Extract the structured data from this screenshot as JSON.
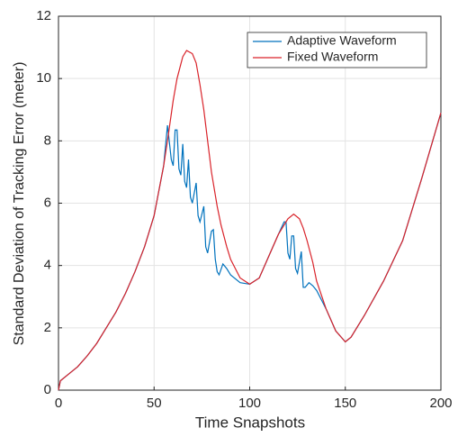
{
  "chart_data": {
    "type": "line",
    "xlabel": "Time Snapshots",
    "ylabel": "Standard Deviation of Tracking Error (meter)",
    "xlim": [
      0,
      200
    ],
    "xticks": [
      0,
      50,
      100,
      150,
      200
    ],
    "ylim": [
      0,
      12
    ],
    "yticks": [
      0,
      2,
      4,
      6,
      8,
      10,
      12
    ],
    "grid": true,
    "legend": "top-right",
    "series": [
      {
        "name": "Adaptive Waveform",
        "color": "#0072bd",
        "x": [
          0,
          1,
          5,
          10,
          15,
          20,
          25,
          30,
          35,
          40,
          45,
          50,
          55,
          57,
          59,
          60,
          61,
          62,
          63,
          64,
          65,
          66,
          67,
          68,
          69,
          70,
          72,
          73,
          74,
          76,
          77,
          78,
          80,
          81,
          82,
          83,
          84,
          86,
          88,
          90,
          95,
          100,
          105,
          110,
          115,
          118,
          119,
          120,
          121,
          122,
          123,
          124,
          125,
          127,
          128,
          129,
          131,
          133,
          135,
          140,
          145,
          150,
          153,
          160,
          170,
          180,
          190,
          200
        ],
        "values": [
          0,
          0.3,
          0.5,
          0.75,
          1.1,
          1.5,
          2.0,
          2.5,
          3.1,
          3.8,
          4.6,
          5.6,
          7.2,
          8.5,
          7.4,
          7.2,
          8.35,
          8.35,
          7.1,
          6.9,
          7.9,
          6.7,
          6.5,
          7.4,
          6.2,
          6.0,
          6.65,
          5.6,
          5.4,
          5.9,
          4.6,
          4.4,
          5.1,
          5.15,
          4.2,
          3.8,
          3.7,
          4.05,
          3.9,
          3.7,
          3.45,
          3.4,
          3.6,
          4.3,
          5.0,
          5.4,
          5.4,
          4.4,
          4.2,
          4.95,
          4.95,
          3.9,
          3.75,
          4.45,
          3.3,
          3.3,
          3.45,
          3.35,
          3.2,
          2.6,
          1.9,
          1.55,
          1.7,
          2.4,
          3.5,
          4.8,
          6.8,
          8.9
        ]
      },
      {
        "name": "Fixed Waveform",
        "color": "#d9232a",
        "x": [
          0,
          1,
          5,
          10,
          15,
          20,
          25,
          30,
          35,
          40,
          45,
          50,
          55,
          57,
          60,
          62,
          65,
          67,
          70,
          72,
          74,
          76,
          78,
          80,
          83,
          85,
          88,
          90,
          95,
          100,
          105,
          110,
          115,
          120,
          123,
          126,
          128,
          130,
          133,
          135,
          140,
          145,
          150,
          153,
          160,
          170,
          180,
          190,
          200
        ],
        "values": [
          0,
          0.3,
          0.5,
          0.75,
          1.1,
          1.5,
          2.0,
          2.5,
          3.1,
          3.8,
          4.6,
          5.6,
          7.2,
          8.0,
          9.3,
          10.0,
          10.7,
          10.9,
          10.8,
          10.5,
          9.8,
          9.0,
          8.0,
          7.0,
          5.9,
          5.3,
          4.6,
          4.2,
          3.6,
          3.4,
          3.6,
          4.3,
          5.0,
          5.5,
          5.65,
          5.5,
          5.2,
          4.8,
          4.1,
          3.5,
          2.6,
          1.9,
          1.55,
          1.7,
          2.4,
          3.5,
          4.8,
          6.8,
          8.9
        ]
      }
    ]
  }
}
